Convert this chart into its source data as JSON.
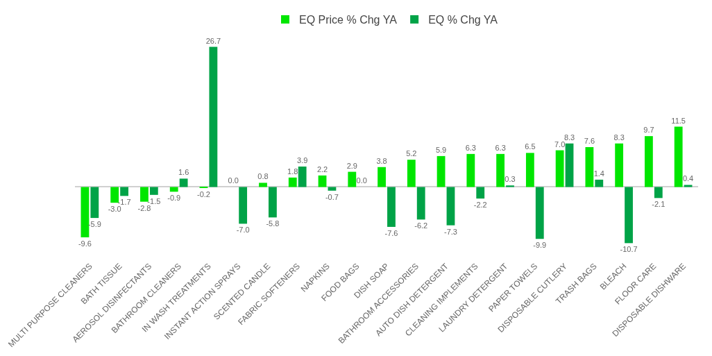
{
  "chart_data": {
    "type": "bar",
    "categories": [
      "MULTI PURPOSE CLEANERS",
      "BATH TISSUE",
      "AEROSOL DISINFECTANTS",
      "BATHROOM CLEANERS",
      "IN WASH TREATMENTS",
      "INSTANT ACTION SPRAYS",
      "SCENTED CANDLE",
      "FABRIC SOFTENERS",
      "NAPKINS",
      "FOOD BAGS",
      "DISH SOAP",
      "BATHROOM ACCESSORIES",
      "AUTO DISH DETERGENT",
      "CLEANING IMPLEMENTS",
      "LAUNDRY DETERGENT",
      "PAPER TOWELS",
      "DISPOSABLE CUTLERY",
      "TRASH BAGS",
      "BLEACH",
      "FLOOR CARE",
      "DISPOSABLE DISHWARE"
    ],
    "series": [
      {
        "name": "EQ Price % Chg YA",
        "color": "#00e600",
        "values": [
          -9.6,
          -3.0,
          -2.8,
          -0.9,
          -0.2,
          0.0,
          0.8,
          1.8,
          2.2,
          2.9,
          3.8,
          5.2,
          5.9,
          6.3,
          6.3,
          6.5,
          7.0,
          7.6,
          8.3,
          9.7,
          11.5
        ],
        "value_labels": [
          "-9.6",
          "-3.0",
          "-2.8",
          "-0.9",
          "-0.2",
          "0.0",
          "0.8",
          "1.8",
          "2.2",
          "2.9",
          "3.8",
          "5.2",
          "5.9",
          "6.3",
          "6.3",
          "6.5",
          "7.0",
          "7.6",
          "8.3",
          "9.7",
          "11.5"
        ]
      },
      {
        "name": "EQ % Chg YA",
        "color": "#00a347",
        "values": [
          -5.9,
          -1.7,
          -1.5,
          1.6,
          26.7,
          -7.0,
          -5.8,
          3.9,
          -0.7,
          0.0,
          -7.6,
          -6.2,
          -7.3,
          -2.2,
          0.3,
          -9.9,
          8.3,
          1.4,
          -10.7,
          -2.1,
          0.4
        ],
        "value_labels": [
          "-5.9",
          "-1.7",
          "-1.5",
          "1.6",
          "26.7",
          "-7.0",
          "-5.8",
          "3.9",
          "-0.7",
          "0.0",
          "-7.6",
          "-6.2",
          "-7.3",
          "-2.2",
          "0.3",
          "-9.9",
          "8.3",
          "1.4",
          "-10.7",
          "-2.1",
          "0.4"
        ]
      }
    ],
    "legend": "top"
  }
}
